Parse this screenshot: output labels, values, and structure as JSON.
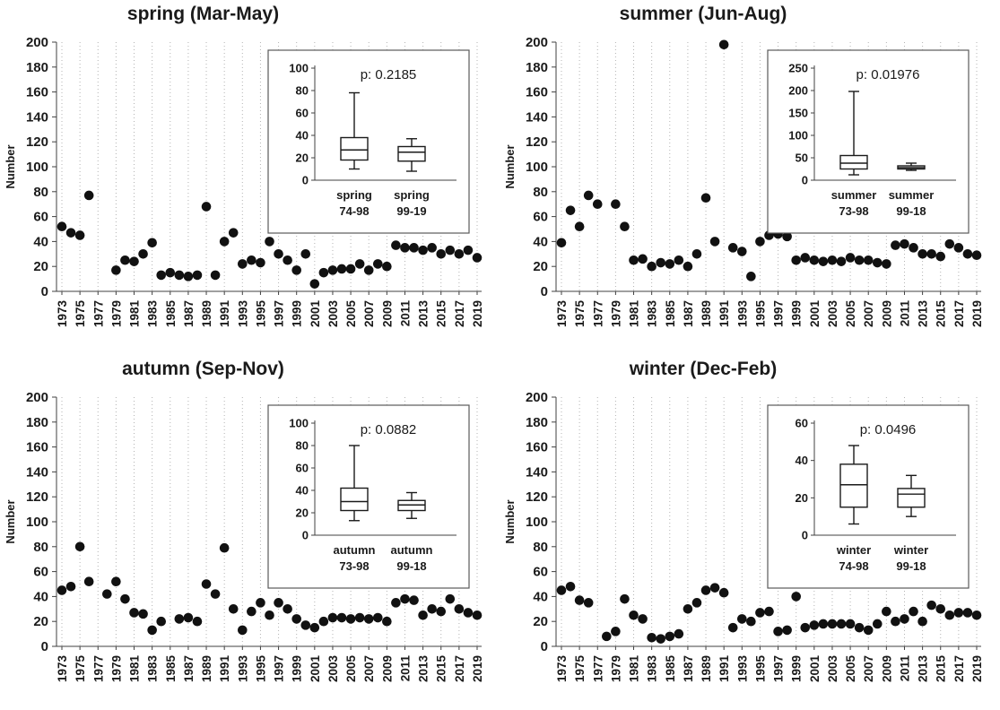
{
  "chart_data": [
    {
      "type": "scatter",
      "title": "spring (Mar-May)",
      "ylabel": "Number",
      "ylim": [
        0,
        200
      ],
      "ytick_step": 20,
      "x_range": [
        1973,
        2019
      ],
      "xtick_step": 2,
      "grid": "vertical-dotted",
      "legend": "none",
      "points": [
        [
          1973,
          52
        ],
        [
          1974,
          47
        ],
        [
          1975,
          45
        ],
        [
          1976,
          77
        ],
        [
          1979,
          17
        ],
        [
          1980,
          25
        ],
        [
          1981,
          24
        ],
        [
          1982,
          30
        ],
        [
          1983,
          39
        ],
        [
          1984,
          13
        ],
        [
          1985,
          15
        ],
        [
          1986,
          13
        ],
        [
          1987,
          12
        ],
        [
          1988,
          13
        ],
        [
          1989,
          68
        ],
        [
          1990,
          13
        ],
        [
          1991,
          40
        ],
        [
          1992,
          47
        ],
        [
          1993,
          22
        ],
        [
          1994,
          25
        ],
        [
          1995,
          23
        ],
        [
          1996,
          40
        ],
        [
          1997,
          30
        ],
        [
          1998,
          25
        ],
        [
          1999,
          17
        ],
        [
          2000,
          30
        ],
        [
          2001,
          6
        ],
        [
          2002,
          15
        ],
        [
          2003,
          17
        ],
        [
          2004,
          18
        ],
        [
          2005,
          18
        ],
        [
          2006,
          22
        ],
        [
          2007,
          17
        ],
        [
          2008,
          22
        ],
        [
          2009,
          20
        ],
        [
          2010,
          37
        ],
        [
          2011,
          35
        ],
        [
          2012,
          35
        ],
        [
          2013,
          33
        ],
        [
          2014,
          35
        ],
        [
          2015,
          30
        ],
        [
          2016,
          33
        ],
        [
          2017,
          30
        ],
        [
          2018,
          33
        ],
        [
          2019,
          27
        ]
      ],
      "inset": {
        "type": "boxplot",
        "p_label": "p: 0.2185",
        "ylim": [
          0,
          100
        ],
        "yticks": [
          0,
          20,
          40,
          60,
          80,
          100
        ],
        "groups": [
          {
            "label": [
              "spring",
              "74-98"
            ],
            "whisker_low": 10,
            "q1": 18,
            "median": 27,
            "q3": 38,
            "whisker_high": 78
          },
          {
            "label": [
              "spring",
              "99-19"
            ],
            "whisker_low": 8,
            "q1": 17,
            "median": 25,
            "q3": 30,
            "whisker_high": 37
          }
        ]
      }
    },
    {
      "type": "scatter",
      "title": "summer (Jun-Aug)",
      "ylabel": "Number",
      "ylim": [
        0,
        200
      ],
      "ytick_step": 20,
      "x_range": [
        1973,
        2019
      ],
      "xtick_step": 2,
      "grid": "vertical-dotted",
      "legend": "none",
      "points": [
        [
          1973,
          39
        ],
        [
          1974,
          65
        ],
        [
          1975,
          52
        ],
        [
          1976,
          77
        ],
        [
          1977,
          70
        ],
        [
          1979,
          70
        ],
        [
          1980,
          52
        ],
        [
          1981,
          25
        ],
        [
          1982,
          26
        ],
        [
          1983,
          20
        ],
        [
          1984,
          23
        ],
        [
          1985,
          22
        ],
        [
          1986,
          25
        ],
        [
          1987,
          20
        ],
        [
          1988,
          30
        ],
        [
          1989,
          75
        ],
        [
          1990,
          40
        ],
        [
          1991,
          198
        ],
        [
          1992,
          35
        ],
        [
          1993,
          32
        ],
        [
          1994,
          12
        ],
        [
          1995,
          40
        ],
        [
          1996,
          45
        ],
        [
          1997,
          46
        ],
        [
          1998,
          44
        ],
        [
          1999,
          25
        ],
        [
          2000,
          27
        ],
        [
          2001,
          25
        ],
        [
          2002,
          24
        ],
        [
          2003,
          25
        ],
        [
          2004,
          24
        ],
        [
          2005,
          27
        ],
        [
          2006,
          25
        ],
        [
          2007,
          25
        ],
        [
          2008,
          23
        ],
        [
          2009,
          22
        ],
        [
          2010,
          37
        ],
        [
          2011,
          38
        ],
        [
          2012,
          35
        ],
        [
          2013,
          30
        ],
        [
          2014,
          30
        ],
        [
          2015,
          28
        ],
        [
          2016,
          38
        ],
        [
          2017,
          35
        ],
        [
          2018,
          30
        ],
        [
          2019,
          29
        ]
      ],
      "inset": {
        "type": "boxplot",
        "p_label": "p: 0.01976",
        "ylim": [
          0,
          250
        ],
        "yticks": [
          0,
          50,
          100,
          150,
          200,
          250
        ],
        "groups": [
          {
            "label": [
              "summer",
              "73-98"
            ],
            "whisker_low": 12,
            "q1": 25,
            "median": 38,
            "q3": 55,
            "whisker_high": 198
          },
          {
            "label": [
              "summer",
              "99-18"
            ],
            "whisker_low": 22,
            "q1": 25,
            "median": 28,
            "q3": 32,
            "whisker_high": 38
          }
        ]
      }
    },
    {
      "type": "scatter",
      "title": "autumn (Sep-Nov)",
      "ylabel": "Number",
      "ylim": [
        0,
        200
      ],
      "ytick_step": 20,
      "x_range": [
        1973,
        2019
      ],
      "xtick_step": 2,
      "grid": "vertical-dotted",
      "legend": "none",
      "points": [
        [
          1973,
          45
        ],
        [
          1974,
          48
        ],
        [
          1975,
          80
        ],
        [
          1976,
          52
        ],
        [
          1978,
          42
        ],
        [
          1979,
          52
        ],
        [
          1980,
          38
        ],
        [
          1981,
          27
        ],
        [
          1982,
          26
        ],
        [
          1983,
          13
        ],
        [
          1984,
          20
        ],
        [
          1986,
          22
        ],
        [
          1987,
          23
        ],
        [
          1988,
          20
        ],
        [
          1989,
          50
        ],
        [
          1990,
          42
        ],
        [
          1991,
          79
        ],
        [
          1992,
          30
        ],
        [
          1993,
          13
        ],
        [
          1994,
          28
        ],
        [
          1995,
          35
        ],
        [
          1996,
          25
        ],
        [
          1997,
          35
        ],
        [
          1998,
          30
        ],
        [
          1999,
          22
        ],
        [
          2000,
          17
        ],
        [
          2001,
          15
        ],
        [
          2002,
          20
        ],
        [
          2003,
          23
        ],
        [
          2004,
          23
        ],
        [
          2005,
          22
        ],
        [
          2006,
          23
        ],
        [
          2007,
          22
        ],
        [
          2008,
          23
        ],
        [
          2009,
          20
        ],
        [
          2010,
          35
        ],
        [
          2011,
          38
        ],
        [
          2012,
          37
        ],
        [
          2013,
          25
        ],
        [
          2014,
          30
        ],
        [
          2015,
          28
        ],
        [
          2016,
          38
        ],
        [
          2017,
          30
        ],
        [
          2018,
          27
        ],
        [
          2019,
          25
        ]
      ],
      "inset": {
        "type": "boxplot",
        "p_label": "p: 0.0882",
        "ylim": [
          0,
          100
        ],
        "yticks": [
          0,
          20,
          40,
          60,
          80,
          100
        ],
        "groups": [
          {
            "label": [
              "autumn",
              "73-98"
            ],
            "whisker_low": 13,
            "q1": 22,
            "median": 30,
            "q3": 42,
            "whisker_high": 80
          },
          {
            "label": [
              "autumn",
              "99-18"
            ],
            "whisker_low": 15,
            "q1": 22,
            "median": 27,
            "q3": 31,
            "whisker_high": 38
          }
        ]
      }
    },
    {
      "type": "scatter",
      "title": "winter (Dec-Feb)",
      "ylabel": "Number",
      "ylim": [
        0,
        200
      ],
      "ytick_step": 20,
      "x_range": [
        1973,
        2019
      ],
      "xtick_step": 2,
      "grid": "vertical-dotted",
      "legend": "none",
      "points": [
        [
          1973,
          45
        ],
        [
          1974,
          48
        ],
        [
          1975,
          37
        ],
        [
          1976,
          35
        ],
        [
          1978,
          8
        ],
        [
          1979,
          12
        ],
        [
          1980,
          38
        ],
        [
          1981,
          25
        ],
        [
          1982,
          22
        ],
        [
          1983,
          7
        ],
        [
          1984,
          6
        ],
        [
          1985,
          8
        ],
        [
          1986,
          10
        ],
        [
          1987,
          30
        ],
        [
          1988,
          35
        ],
        [
          1989,
          45
        ],
        [
          1990,
          47
        ],
        [
          1991,
          43
        ],
        [
          1992,
          15
        ],
        [
          1993,
          22
        ],
        [
          1994,
          20
        ],
        [
          1995,
          27
        ],
        [
          1996,
          28
        ],
        [
          1997,
          12
        ],
        [
          1998,
          13
        ],
        [
          1999,
          40
        ],
        [
          2000,
          15
        ],
        [
          2001,
          17
        ],
        [
          2002,
          18
        ],
        [
          2003,
          18
        ],
        [
          2004,
          18
        ],
        [
          2005,
          18
        ],
        [
          2006,
          15
        ],
        [
          2007,
          13
        ],
        [
          2008,
          18
        ],
        [
          2009,
          28
        ],
        [
          2010,
          20
        ],
        [
          2011,
          22
        ],
        [
          2012,
          28
        ],
        [
          2013,
          20
        ],
        [
          2014,
          33
        ],
        [
          2015,
          30
        ],
        [
          2016,
          25
        ],
        [
          2017,
          27
        ],
        [
          2018,
          27
        ],
        [
          2019,
          25
        ]
      ],
      "inset": {
        "type": "boxplot",
        "p_label": "p: 0.0496",
        "ylim": [
          0,
          60
        ],
        "yticks": [
          0,
          20,
          40,
          60
        ],
        "groups": [
          {
            "label": [
              "winter",
              "74-98"
            ],
            "whisker_low": 6,
            "q1": 15,
            "median": 27,
            "q3": 38,
            "whisker_high": 48
          },
          {
            "label": [
              "winter",
              "99-18"
            ],
            "whisker_low": 10,
            "q1": 15,
            "median": 22,
            "q3": 25,
            "whisker_high": 32
          }
        ]
      }
    }
  ],
  "colors": {
    "point_fill": "#111111",
    "axis_line": "#404040",
    "grid_line": "#b3b3b3",
    "text": "#1a1a1a",
    "inset_border": "#595959",
    "background": "#ffffff"
  }
}
